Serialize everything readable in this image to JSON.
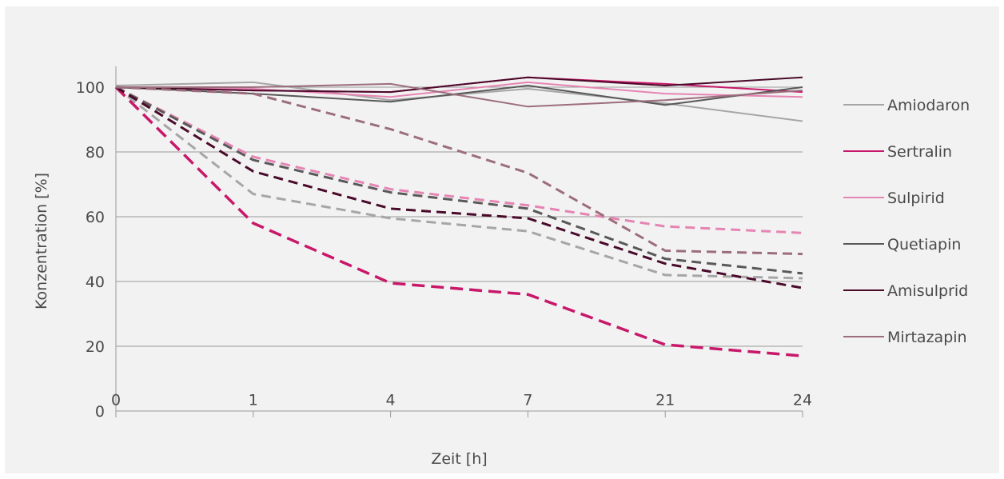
{
  "chart_data": {
    "type": "line",
    "title": "",
    "xlabel": "Zeit [h]",
    "ylabel": "Konzentration [%]",
    "categories": [
      "0",
      "1",
      "4",
      "7",
      "21",
      "24"
    ],
    "ylim": [
      0,
      100
    ],
    "yticks": [
      0,
      20,
      40,
      60,
      80,
      100
    ],
    "grid": true,
    "legend_position": "right",
    "background": "#f2f2f2",
    "legend_entries": [
      {
        "name": "Amiodaron",
        "color": "#a6a6a6"
      },
      {
        "name": "Sertralin",
        "color": "#c8186a"
      },
      {
        "name": "Sulpirid",
        "color": "#e685b3"
      },
      {
        "name": "Quetiapin",
        "color": "#595959"
      },
      {
        "name": "Amisulprid",
        "color": "#4a0a2a"
      },
      {
        "name": "Mirtazapin",
        "color": "#9c6e7c"
      }
    ],
    "series": [
      {
        "legend_index": 0,
        "color": "#a6a6a6",
        "dashed": false,
        "values": [
          100.5,
          101.5,
          96,
          99.5,
          95,
          89.5
        ]
      },
      {
        "legend_index": 1,
        "color": "#c8186a",
        "dashed": false,
        "values": [
          100,
          99,
          98.5,
          103,
          101,
          98.5
        ]
      },
      {
        "legend_index": 2,
        "color": "#e685b3",
        "dashed": false,
        "values": [
          100,
          99.5,
          97,
          101.5,
          98,
          97
        ]
      },
      {
        "legend_index": 3,
        "color": "#595959",
        "dashed": false,
        "values": [
          100,
          98,
          95.5,
          100.5,
          94.5,
          100
        ]
      },
      {
        "legend_index": 4,
        "color": "#4a0a2a",
        "dashed": false,
        "values": [
          100,
          99,
          98.5,
          103,
          100.5,
          103
        ]
      },
      {
        "legend_index": 5,
        "color": "#9c6e7c",
        "dashed": false,
        "values": [
          100,
          100,
          101,
          94,
          96,
          99
        ]
      },
      {
        "legend_index": 0,
        "color": "#a6a6a6",
        "dashed": true,
        "values": [
          100,
          67,
          59.5,
          55.5,
          42,
          41
        ]
      },
      {
        "legend_index": 1,
        "color": "#c8186a",
        "dashed": true,
        "values": [
          100,
          58,
          39.5,
          36,
          20.5,
          17
        ]
      },
      {
        "legend_index": 2,
        "color": "#e685b3",
        "dashed": true,
        "values": [
          100,
          78.5,
          68.5,
          63.5,
          57,
          55
        ]
      },
      {
        "legend_index": 3,
        "color": "#595959",
        "dashed": true,
        "values": [
          100,
          77.5,
          67.5,
          62.5,
          47,
          42.5
        ]
      },
      {
        "legend_index": 4,
        "color": "#4a0a2a",
        "dashed": true,
        "values": [
          100,
          74,
          62.5,
          59.5,
          45.5,
          38
        ]
      },
      {
        "legend_index": 5,
        "color": "#9c6e7c",
        "dashed": true,
        "values": [
          100,
          98,
          87,
          73.5,
          49.5,
          48.5
        ]
      }
    ]
  }
}
